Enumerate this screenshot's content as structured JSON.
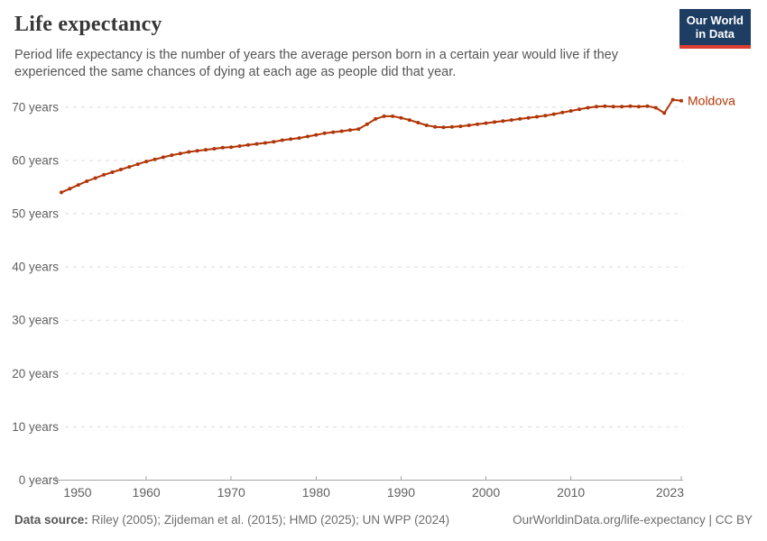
{
  "header": {
    "title": "Life expectancy",
    "subtitle": "Period life expectancy is the number of years the average person born in a certain year would live if they experienced the same chances of dying at each age as people did that year.",
    "logo": {
      "line1": "Our World",
      "line2": "in Data"
    }
  },
  "chart_data": {
    "type": "line",
    "title": "Life expectancy",
    "xlabel": "",
    "ylabel": "",
    "ylim": [
      0,
      73
    ],
    "yticks": [
      0,
      10,
      20,
      30,
      40,
      50,
      60,
      70
    ],
    "ytick_suffix": " years",
    "xticks": [
      1950,
      1960,
      1970,
      1980,
      1990,
      2000,
      2010,
      2023
    ],
    "grid": true,
    "grid_style": "dashed",
    "marker": "circle",
    "legend_position": "end-of-line",
    "series": [
      {
        "name": "Moldova",
        "color": "#b13507",
        "x": [
          1950,
          1951,
          1952,
          1953,
          1954,
          1955,
          1956,
          1957,
          1958,
          1959,
          1960,
          1961,
          1962,
          1963,
          1964,
          1965,
          1966,
          1967,
          1968,
          1969,
          1970,
          1971,
          1972,
          1973,
          1974,
          1975,
          1976,
          1977,
          1978,
          1979,
          1980,
          1981,
          1982,
          1983,
          1984,
          1985,
          1986,
          1987,
          1988,
          1989,
          1990,
          1991,
          1992,
          1993,
          1994,
          1995,
          1996,
          1997,
          1998,
          1999,
          2000,
          2001,
          2002,
          2003,
          2004,
          2005,
          2006,
          2007,
          2008,
          2009,
          2010,
          2011,
          2012,
          2013,
          2014,
          2015,
          2016,
          2017,
          2018,
          2019,
          2020,
          2021,
          2022,
          2023
        ],
        "values": [
          54.0,
          54.7,
          55.4,
          56.1,
          56.7,
          57.3,
          57.8,
          58.3,
          58.8,
          59.3,
          59.8,
          60.2,
          60.6,
          61.0,
          61.3,
          61.6,
          61.8,
          62.0,
          62.2,
          62.4,
          62.5,
          62.7,
          62.9,
          63.1,
          63.3,
          63.5,
          63.8,
          64.0,
          64.2,
          64.5,
          64.8,
          65.1,
          65.3,
          65.5,
          65.7,
          65.9,
          66.8,
          67.8,
          68.3,
          68.3,
          68.0,
          67.6,
          67.1,
          66.6,
          66.3,
          66.2,
          66.3,
          66.4,
          66.6,
          66.8,
          67.0,
          67.2,
          67.4,
          67.6,
          67.8,
          68.0,
          68.2,
          68.4,
          68.7,
          69.0,
          69.3,
          69.6,
          69.9,
          70.1,
          70.2,
          70.1,
          70.1,
          70.2,
          70.1,
          70.2,
          69.9,
          68.9,
          71.4,
          71.2
        ]
      }
    ]
  },
  "footer": {
    "source_label": "Data source:",
    "source_text": " Riley (2005); Zijdeman et al. (2015); HMD (2025); UN WPP (2024)",
    "link_text": "OurWorldinData.org/life-expectancy | CC BY"
  },
  "colors": {
    "line": "#b13507",
    "brand_navy": "#1d3d63",
    "brand_red": "#dc3e32",
    "title": "#373737",
    "subtitle": "#555555",
    "axis_text": "#606060",
    "grid": "#dcdcdc",
    "axis_line": "#a5a5a5",
    "footer_text": "#6e6e6e"
  }
}
